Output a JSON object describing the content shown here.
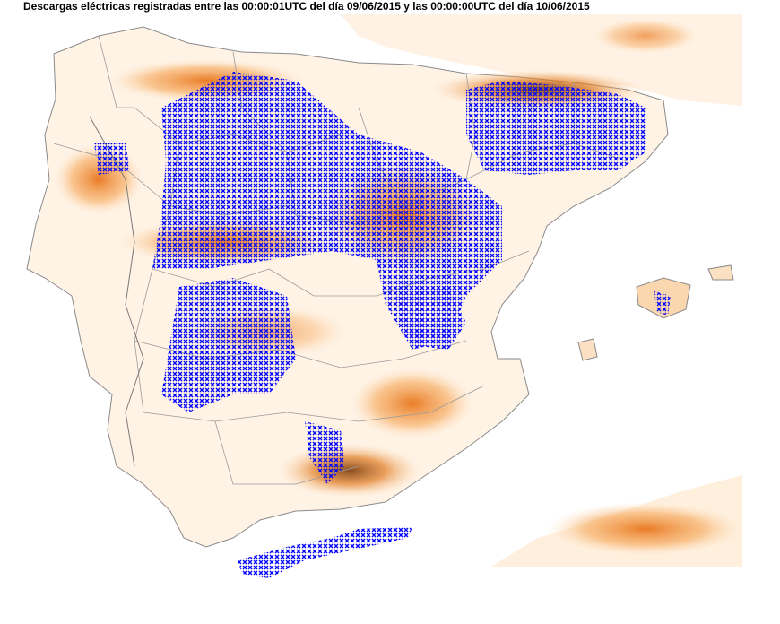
{
  "title": "Descargas eléctricas registradas entre las 00:00:01UTC del día 09/06/2015 y las 00:00:00UTC del día 10/06/2015",
  "colors": {
    "sea": "#ffffff",
    "land_low": "#fff4e8",
    "relief_mid": "#fbc892",
    "relief_high": "#f08a2a",
    "relief_peak": "#7a3a0a",
    "borders": "#8a8a8a",
    "lightning": "#0000ff"
  },
  "marker_symbol": "×"
}
